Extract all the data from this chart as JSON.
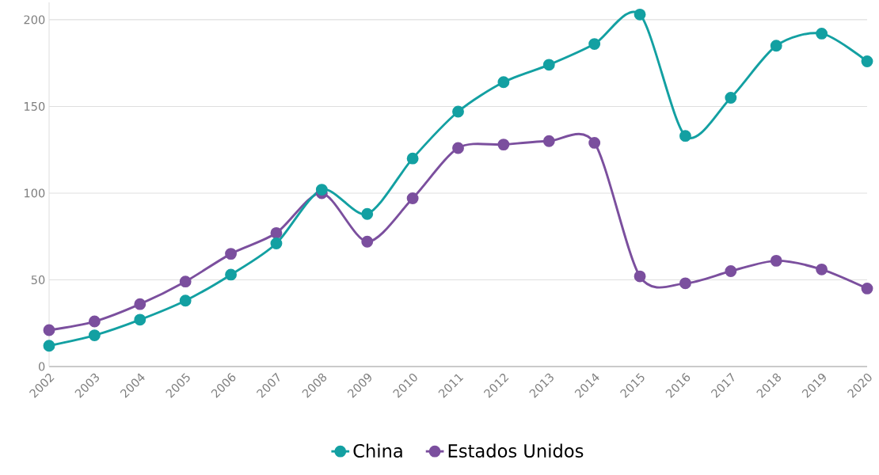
{
  "chart_data": {
    "type": "line",
    "categories": [
      "2002",
      "2003",
      "2004",
      "2005",
      "2006",
      "2007",
      "2008",
      "2009",
      "2010",
      "2011",
      "2012",
      "2013",
      "2014",
      "2015",
      "2016",
      "2017",
      "2018",
      "2019",
      "2020"
    ],
    "series": [
      {
        "name": "China",
        "color": "#13a0a2",
        "values": [
          12,
          18,
          27,
          38,
          53,
          71,
          102,
          88,
          120,
          147,
          164,
          174,
          186,
          203,
          133,
          155,
          185,
          192,
          176
        ]
      },
      {
        "name": "Estados Unidos",
        "color": "#7b4f9e",
        "values": [
          21,
          26,
          36,
          49,
          65,
          77,
          100,
          72,
          97,
          126,
          128,
          130,
          129,
          52,
          48,
          55,
          61,
          56,
          45
        ]
      }
    ],
    "ylim": [
      0,
      210
    ],
    "yticks": [
      0,
      50,
      100,
      150,
      200
    ],
    "grid": "y",
    "legend": "bottom",
    "marker": "circle",
    "line_style": "solid"
  }
}
